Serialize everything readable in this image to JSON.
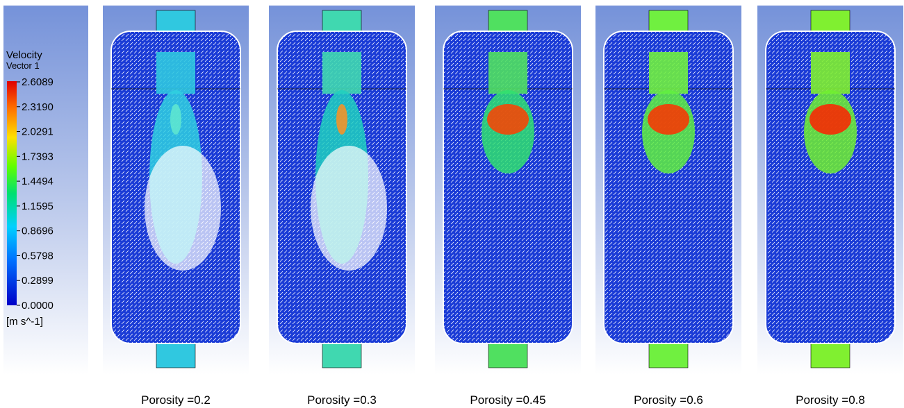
{
  "legend": {
    "title": "Velocity",
    "subtitle": "Vector 1",
    "ticks": [
      "2.6089",
      "2.3190",
      "2.0291",
      "1.7393",
      "1.4494",
      "1.1595",
      "0.8696",
      "0.5798",
      "0.2899",
      "0.0000"
    ],
    "unit": "[m s^-1]"
  },
  "panels": [
    {
      "caption": "Porosity =0.2"
    },
    {
      "caption": "Porosity =0.3"
    },
    {
      "caption": "Porosity =0.45"
    },
    {
      "caption": "Porosity =0.6"
    },
    {
      "caption": "Porosity =0.8"
    }
  ]
}
